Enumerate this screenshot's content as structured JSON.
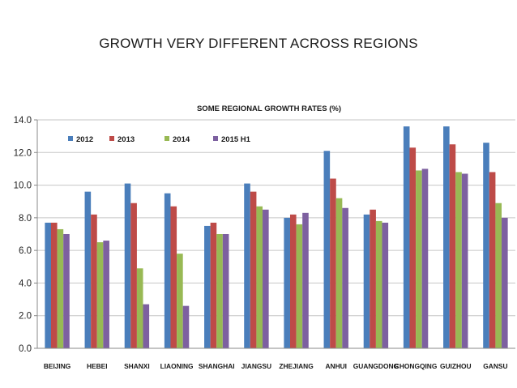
{
  "slide": {
    "title": "GROWTH VERY DIFFERENT ACROSS REGIONS"
  },
  "chart_data": {
    "type": "bar",
    "title": "SOME REGIONAL GROWTH RATES (%)",
    "xlabel": "",
    "ylabel": "",
    "ylim": [
      0,
      14
    ],
    "yticks": [
      "0.0",
      "2.0",
      "4.0",
      "6.0",
      "8.0",
      "10.0",
      "12.0",
      "14.0"
    ],
    "grid": true,
    "legend_position": "top-left",
    "categories": [
      "BEIJING",
      "HEBEI",
      "SHANXI",
      "LIAONING",
      "SHANGHAI",
      "JIANGSU",
      "ZHEJIANG",
      "ANHUI",
      "GUANGDONG",
      "CHONGQING",
      "GUIZHOU",
      "GANSU"
    ],
    "series": [
      {
        "name": "2012",
        "color": "#4a7ebb",
        "values": [
          7.7,
          9.6,
          10.1,
          9.5,
          7.5,
          10.1,
          8.0,
          12.1,
          8.2,
          13.6,
          13.6,
          12.6
        ]
      },
      {
        "name": "2013",
        "color": "#be4b48",
        "values": [
          7.7,
          8.2,
          8.9,
          8.7,
          7.7,
          9.6,
          8.2,
          10.4,
          8.5,
          12.3,
          12.5,
          10.8
        ]
      },
      {
        "name": "2014",
        "color": "#98b954",
        "values": [
          7.3,
          6.5,
          4.9,
          5.8,
          7.0,
          8.7,
          7.6,
          9.2,
          7.8,
          10.9,
          10.8,
          8.9
        ]
      },
      {
        "name": "2015 H1",
        "color": "#7d60a0",
        "values": [
          7.0,
          6.6,
          2.7,
          2.6,
          7.0,
          8.5,
          8.3,
          8.6,
          7.7,
          11.0,
          10.7,
          8.0
        ]
      }
    ]
  }
}
